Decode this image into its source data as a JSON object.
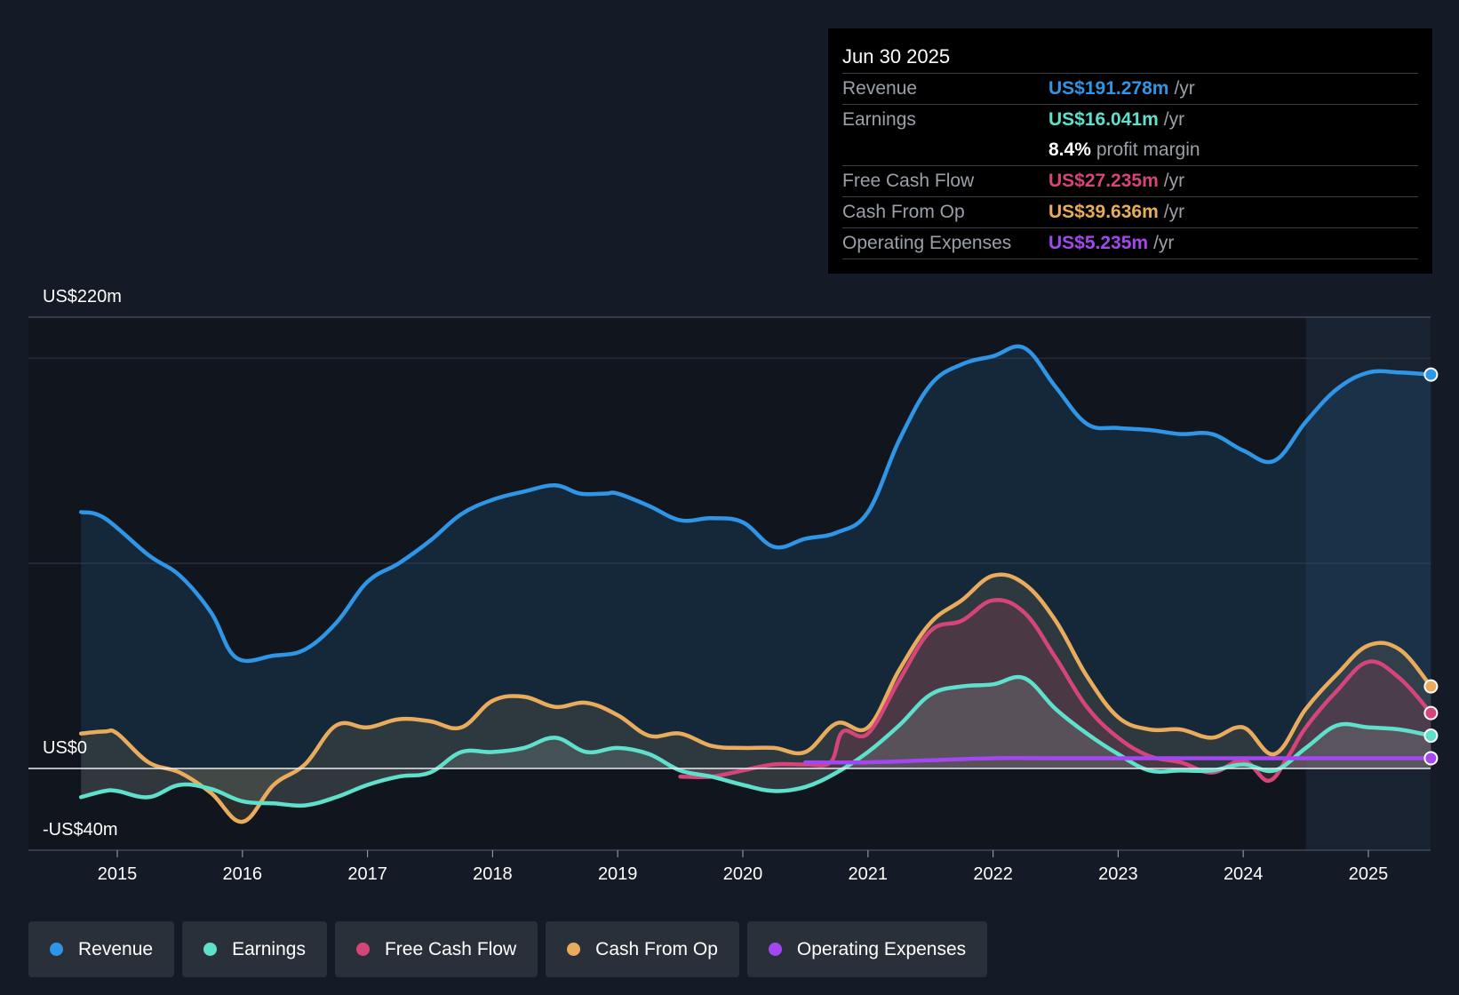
{
  "colors": {
    "revenue": "#2f95e6",
    "earnings": "#5fe0cb",
    "fcf": "#d6457a",
    "cfo": "#e9ac5c",
    "opex": "#a348f0"
  },
  "tooltip": {
    "date": "Jun 30 2025",
    "rows": [
      {
        "label": "Revenue",
        "value": "US$191.278m",
        "unit": "/yr"
      },
      {
        "label": "Earnings",
        "value": "US$16.041m",
        "unit": "/yr"
      },
      {
        "label": "",
        "value": "8.4%",
        "unit": "profit margin"
      },
      {
        "label": "Free Cash Flow",
        "value": "US$27.235m",
        "unit": "/yr"
      },
      {
        "label": "Cash From Op",
        "value": "US$39.636m",
        "unit": "/yr"
      },
      {
        "label": "Operating Expenses",
        "value": "US$5.235m",
        "unit": "/yr"
      }
    ]
  },
  "legend": [
    {
      "label": "Revenue"
    },
    {
      "label": "Earnings"
    },
    {
      "label": "Free Cash Flow"
    },
    {
      "label": "Cash From Op"
    },
    {
      "label": "Operating Expenses"
    }
  ],
  "chart_data": {
    "type": "line",
    "ylabels": {
      "top": "US$220m",
      "zero": "US$0",
      "bottom": "-US$40m"
    },
    "ylim": [
      -40,
      220
    ],
    "xlim": [
      2014.75,
      2025.5
    ],
    "xticks": [
      2015,
      2016,
      2017,
      2018,
      2019,
      2020,
      2021,
      2022,
      2023,
      2024,
      2025
    ],
    "gridlines": [
      200,
      100,
      0
    ],
    "forecast_shade_start": 2024.5,
    "series": [
      {
        "name": "Revenue",
        "key": "revenue",
        "fill": true,
        "points": [
          [
            2014.71,
            125
          ],
          [
            2014.9,
            122
          ],
          [
            2015.25,
            104
          ],
          [
            2015.5,
            94
          ],
          [
            2015.75,
            76
          ],
          [
            2015.95,
            54
          ],
          [
            2016.25,
            55
          ],
          [
            2016.5,
            58
          ],
          [
            2016.75,
            71
          ],
          [
            2017.0,
            91
          ],
          [
            2017.25,
            100
          ],
          [
            2017.5,
            111
          ],
          [
            2017.75,
            124
          ],
          [
            2018.0,
            131
          ],
          [
            2018.25,
            135
          ],
          [
            2018.5,
            138
          ],
          [
            2018.7,
            134
          ],
          [
            2018.9,
            134
          ],
          [
            2019.0,
            134
          ],
          [
            2019.25,
            128
          ],
          [
            2019.5,
            121
          ],
          [
            2019.75,
            122
          ],
          [
            2020.0,
            120
          ],
          [
            2020.25,
            108
          ],
          [
            2020.5,
            112
          ],
          [
            2020.75,
            115
          ],
          [
            2021.0,
            125
          ],
          [
            2021.25,
            160
          ],
          [
            2021.5,
            187
          ],
          [
            2021.75,
            197
          ],
          [
            2022.0,
            201
          ],
          [
            2022.25,
            205
          ],
          [
            2022.5,
            186
          ],
          [
            2022.75,
            168
          ],
          [
            2023.0,
            166
          ],
          [
            2023.25,
            165
          ],
          [
            2023.5,
            163
          ],
          [
            2023.75,
            163
          ],
          [
            2024.0,
            155
          ],
          [
            2024.25,
            150
          ],
          [
            2024.5,
            169
          ],
          [
            2024.75,
            185
          ],
          [
            2025.0,
            193
          ],
          [
            2025.25,
            193
          ],
          [
            2025.5,
            192
          ]
        ]
      },
      {
        "name": "Cash From Op",
        "key": "cfo",
        "fill": true,
        "points": [
          [
            2014.71,
            17
          ],
          [
            2014.9,
            18
          ],
          [
            2015.0,
            17
          ],
          [
            2015.25,
            3
          ],
          [
            2015.5,
            -2
          ],
          [
            2015.75,
            -12
          ],
          [
            2016.0,
            -26
          ],
          [
            2016.25,
            -8
          ],
          [
            2016.5,
            2
          ],
          [
            2016.75,
            21
          ],
          [
            2017.0,
            20
          ],
          [
            2017.25,
            24
          ],
          [
            2017.5,
            23
          ],
          [
            2017.75,
            20
          ],
          [
            2018.0,
            33
          ],
          [
            2018.25,
            35
          ],
          [
            2018.5,
            30
          ],
          [
            2018.75,
            32
          ],
          [
            2019.0,
            26
          ],
          [
            2019.25,
            16
          ],
          [
            2019.5,
            17
          ],
          [
            2019.75,
            11
          ],
          [
            2020.0,
            10
          ],
          [
            2020.25,
            10
          ],
          [
            2020.5,
            8
          ],
          [
            2020.75,
            22
          ],
          [
            2021.0,
            20
          ],
          [
            2021.25,
            48
          ],
          [
            2021.5,
            71
          ],
          [
            2021.75,
            82
          ],
          [
            2022.0,
            94
          ],
          [
            2022.25,
            90
          ],
          [
            2022.5,
            72
          ],
          [
            2022.75,
            45
          ],
          [
            2023.0,
            25
          ],
          [
            2023.25,
            19
          ],
          [
            2023.5,
            19
          ],
          [
            2023.75,
            15
          ],
          [
            2024.0,
            20
          ],
          [
            2024.25,
            7
          ],
          [
            2024.5,
            29
          ],
          [
            2024.75,
            46
          ],
          [
            2025.0,
            60
          ],
          [
            2025.25,
            58
          ],
          [
            2025.5,
            40
          ]
        ]
      },
      {
        "name": "Free Cash Flow",
        "key": "fcf",
        "fill": true,
        "points": [
          [
            2019.5,
            -4
          ],
          [
            2019.75,
            -4
          ],
          [
            2020.0,
            -1
          ],
          [
            2020.25,
            2
          ],
          [
            2020.5,
            2
          ],
          [
            2020.7,
            3
          ],
          [
            2020.8,
            18
          ],
          [
            2021.0,
            17
          ],
          [
            2021.25,
            43
          ],
          [
            2021.5,
            67
          ],
          [
            2021.75,
            72
          ],
          [
            2022.0,
            82
          ],
          [
            2022.25,
            76
          ],
          [
            2022.5,
            54
          ],
          [
            2022.75,
            30
          ],
          [
            2023.0,
            15
          ],
          [
            2023.25,
            6
          ],
          [
            2023.5,
            3
          ],
          [
            2023.75,
            -2
          ],
          [
            2024.0,
            4
          ],
          [
            2024.2,
            -6
          ],
          [
            2024.35,
            5
          ],
          [
            2024.5,
            20
          ],
          [
            2024.75,
            38
          ],
          [
            2025.0,
            52
          ],
          [
            2025.25,
            44
          ],
          [
            2025.5,
            27
          ]
        ]
      },
      {
        "name": "Earnings",
        "key": "earnings",
        "fill": true,
        "points": [
          [
            2014.71,
            -14
          ],
          [
            2014.9,
            -11
          ],
          [
            2015.0,
            -11
          ],
          [
            2015.25,
            -14
          ],
          [
            2015.5,
            -8
          ],
          [
            2015.75,
            -10
          ],
          [
            2016.0,
            -16
          ],
          [
            2016.25,
            -17
          ],
          [
            2016.5,
            -18
          ],
          [
            2016.75,
            -14
          ],
          [
            2017.0,
            -8
          ],
          [
            2017.25,
            -4
          ],
          [
            2017.5,
            -2
          ],
          [
            2017.75,
            8
          ],
          [
            2018.0,
            8
          ],
          [
            2018.25,
            10
          ],
          [
            2018.5,
            15
          ],
          [
            2018.75,
            8
          ],
          [
            2019.0,
            10
          ],
          [
            2019.25,
            7
          ],
          [
            2019.5,
            -1
          ],
          [
            2019.75,
            -4
          ],
          [
            2020.0,
            -8
          ],
          [
            2020.25,
            -11
          ],
          [
            2020.5,
            -9
          ],
          [
            2020.75,
            -2
          ],
          [
            2021.0,
            8
          ],
          [
            2021.25,
            21
          ],
          [
            2021.5,
            36
          ],
          [
            2021.75,
            40
          ],
          [
            2022.0,
            41
          ],
          [
            2022.25,
            44
          ],
          [
            2022.5,
            29
          ],
          [
            2022.75,
            17
          ],
          [
            2023.0,
            7
          ],
          [
            2023.25,
            -1
          ],
          [
            2023.5,
            -1
          ],
          [
            2023.75,
            -1
          ],
          [
            2024.0,
            2
          ],
          [
            2024.25,
            -1
          ],
          [
            2024.5,
            10
          ],
          [
            2024.75,
            21
          ],
          [
            2025.0,
            20
          ],
          [
            2025.25,
            19
          ],
          [
            2025.5,
            16
          ]
        ]
      },
      {
        "name": "Operating Expenses",
        "key": "opex",
        "fill": false,
        "points": [
          [
            2020.5,
            3
          ],
          [
            2021.0,
            3
          ],
          [
            2021.5,
            4
          ],
          [
            2022.0,
            5
          ],
          [
            2022.5,
            5
          ],
          [
            2023.0,
            5
          ],
          [
            2023.5,
            5
          ],
          [
            2024.0,
            5
          ],
          [
            2024.5,
            5
          ],
          [
            2025.0,
            5
          ],
          [
            2025.5,
            5
          ]
        ]
      }
    ]
  }
}
